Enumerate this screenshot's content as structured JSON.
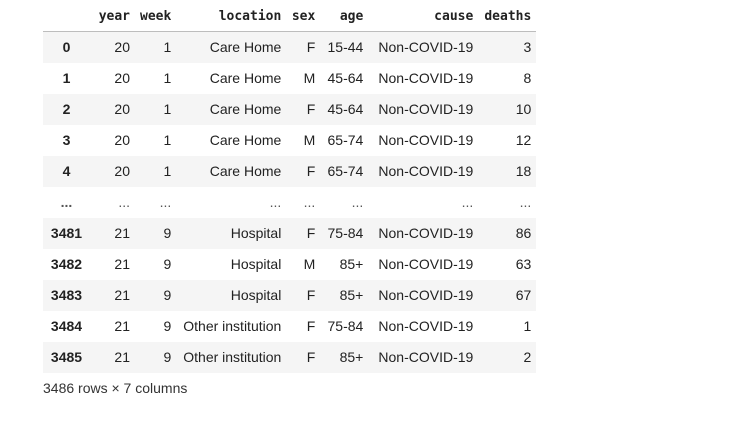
{
  "table": {
    "columns": [
      "",
      "year",
      "week",
      "location",
      "sex",
      "age",
      "cause",
      "deaths"
    ],
    "rows": [
      {
        "index": "0",
        "year": "20",
        "week": "1",
        "location": "Care Home",
        "sex": "F",
        "age": "15-44",
        "cause": "Non-COVID-19",
        "deaths": "3"
      },
      {
        "index": "1",
        "year": "20",
        "week": "1",
        "location": "Care Home",
        "sex": "M",
        "age": "45-64",
        "cause": "Non-COVID-19",
        "deaths": "8"
      },
      {
        "index": "2",
        "year": "20",
        "week": "1",
        "location": "Care Home",
        "sex": "F",
        "age": "45-64",
        "cause": "Non-COVID-19",
        "deaths": "10"
      },
      {
        "index": "3",
        "year": "20",
        "week": "1",
        "location": "Care Home",
        "sex": "M",
        "age": "65-74",
        "cause": "Non-COVID-19",
        "deaths": "12"
      },
      {
        "index": "4",
        "year": "20",
        "week": "1",
        "location": "Care Home",
        "sex": "F",
        "age": "65-74",
        "cause": "Non-COVID-19",
        "deaths": "18"
      },
      {
        "index": "...",
        "year": "...",
        "week": "...",
        "location": "...",
        "sex": "...",
        "age": "...",
        "cause": "...",
        "deaths": "..."
      },
      {
        "index": "3481",
        "year": "21",
        "week": "9",
        "location": "Hospital",
        "sex": "F",
        "age": "75-84",
        "cause": "Non-COVID-19",
        "deaths": "86"
      },
      {
        "index": "3482",
        "year": "21",
        "week": "9",
        "location": "Hospital",
        "sex": "M",
        "age": "85+",
        "cause": "Non-COVID-19",
        "deaths": "63"
      },
      {
        "index": "3483",
        "year": "21",
        "week": "9",
        "location": "Hospital",
        "sex": "F",
        "age": "85+",
        "cause": "Non-COVID-19",
        "deaths": "67"
      },
      {
        "index": "3484",
        "year": "21",
        "week": "9",
        "location": "Other institution",
        "sex": "F",
        "age": "75-84",
        "cause": "Non-COVID-19",
        "deaths": "1"
      },
      {
        "index": "3485",
        "year": "21",
        "week": "9",
        "location": "Other institution",
        "sex": "F",
        "age": "85+",
        "cause": "Non-COVID-19",
        "deaths": "2"
      }
    ]
  },
  "footer": {
    "shape_text": "3486 rows × 7 columns"
  },
  "colors": {
    "stripe": "#f5f5f5",
    "header_border": "#bdbdbd",
    "text": "#222222"
  }
}
